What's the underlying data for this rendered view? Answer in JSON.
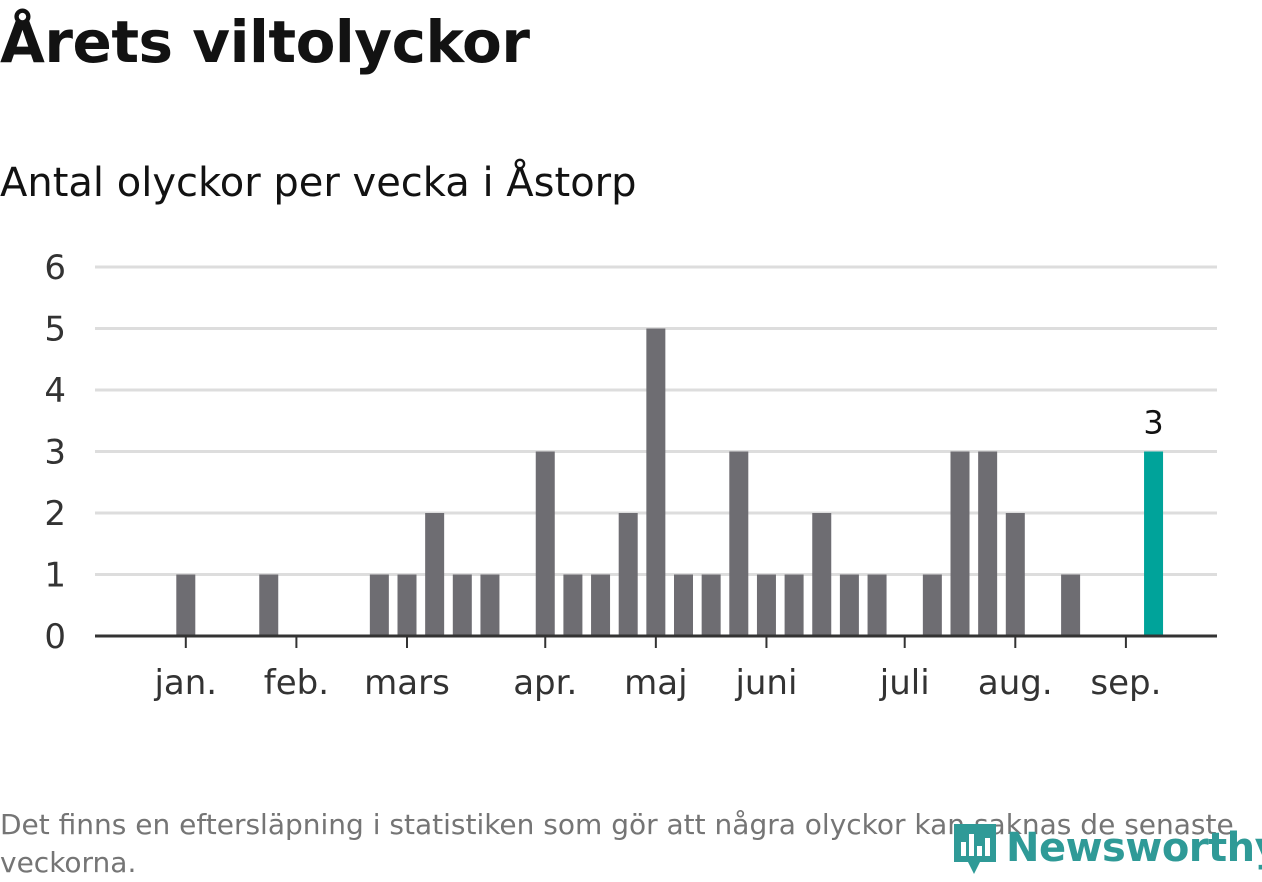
{
  "title": "Årets viltolyckor",
  "subtitle": "Antal olyckor per vecka i Åstorp",
  "footnote": "Det finns en eftersläpning i statistiken som gör att några olyckor kan saknas de senaste veckorna.",
  "logo_text": "Newsworthy",
  "colors": {
    "bar": "#6e6d72",
    "highlight": "#00a39a",
    "grid": "#dddddd",
    "axis": "#333333",
    "text": "#121212",
    "logo": "#2f9a97"
  },
  "chart_data": {
    "type": "bar",
    "y_ticks": [
      "0",
      "1",
      "2",
      "3",
      "4",
      "5",
      "6"
    ],
    "ylim": [
      0,
      6
    ],
    "month_labels": [
      {
        "label": "jan.",
        "week": 3
      },
      {
        "label": "feb.",
        "week": 7
      },
      {
        "label": "mars",
        "week": 11
      },
      {
        "label": "apr.",
        "week": 16
      },
      {
        "label": "maj",
        "week": 20
      },
      {
        "label": "juni",
        "week": 24
      },
      {
        "label": "juli",
        "week": 29
      },
      {
        "label": "aug.",
        "week": 33
      },
      {
        "label": "sep.",
        "week": 37
      }
    ],
    "weeks": [
      1,
      2,
      3,
      4,
      5,
      6,
      7,
      8,
      9,
      10,
      11,
      12,
      13,
      14,
      15,
      16,
      17,
      18,
      19,
      20,
      21,
      22,
      23,
      24,
      25,
      26,
      27,
      28,
      29,
      30,
      31,
      32,
      33,
      34,
      35,
      36,
      37,
      38,
      39
    ],
    "values": [
      0,
      0,
      1,
      0,
      0,
      1,
      0,
      0,
      0,
      1,
      1,
      2,
      1,
      1,
      0,
      3,
      1,
      1,
      2,
      5,
      1,
      1,
      3,
      1,
      1,
      2,
      1,
      1,
      0,
      1,
      3,
      3,
      2,
      0,
      1,
      0,
      0,
      3,
      0
    ],
    "highlight_week": 38,
    "highlight_label": "3"
  }
}
